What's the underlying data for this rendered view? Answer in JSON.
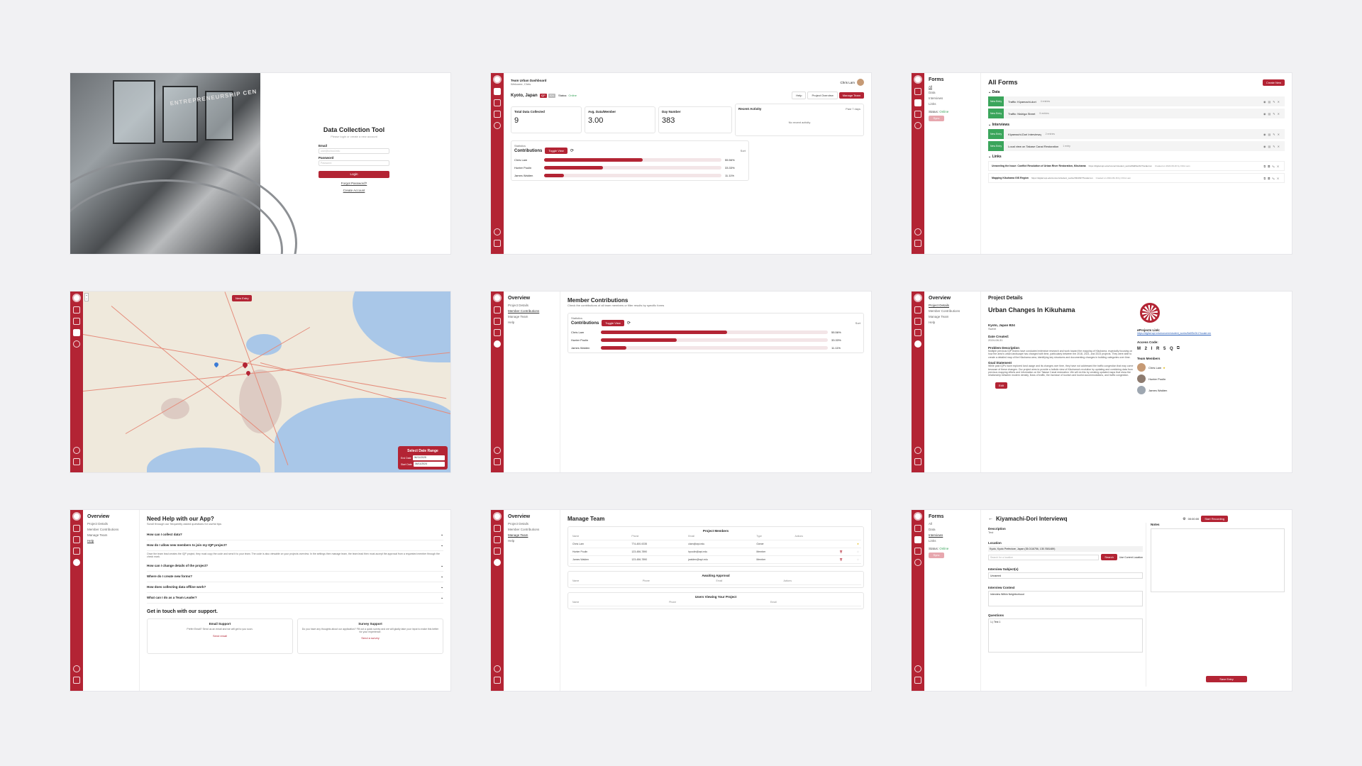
{
  "login": {
    "title": "Data Collection Tool",
    "subtitle": "Please login or create a new account",
    "email_label": "Email",
    "email_placeholder": "user@school.edu",
    "password_label": "Password",
    "password_placeholder": "Password",
    "login_button": "Login",
    "forgot_link": "Forgot Password?",
    "create_link": "Create Account",
    "photo_sign": "ENTREPRENEURSHIP CEN"
  },
  "dashboard": {
    "header": "Team Urban Dashboard",
    "header_sub": "Welcome, Chris",
    "user": "Chris Lam",
    "location": "Kyoto, Japan",
    "badge1": "IQP",
    "badge2": "E24",
    "status_label": "Status:",
    "status_value": "Online",
    "help": "Help",
    "project_overview": "Project Overview",
    "manage_team": "Manage Team",
    "stats": [
      {
        "label": "Total Data Collected",
        "value": "9"
      },
      {
        "label": "Avg. Data/Member",
        "value": "3.00"
      },
      {
        "label": "Day Number",
        "value": "383"
      }
    ],
    "recent_activity": "Recent Activity",
    "recent_range": "Past 7 days",
    "no_activity": "No recent activity",
    "contrib_kicker": "Statistics",
    "contrib_title": "Contributions",
    "toggle": "Toggle View",
    "sort": "Sort"
  },
  "contributions": [
    {
      "name": "Chris Lam",
      "pct": "55.56%",
      "value": 55.56
    },
    {
      "name": "Hunter Poulin",
      "pct": "33.33%",
      "value": 33.33
    },
    {
      "name": "James Walden",
      "pct": "11.11%",
      "value": 11.11
    }
  ],
  "forms": {
    "side_title": "Forms",
    "side_items": [
      "All",
      "Data",
      "Interviews",
      "Links"
    ],
    "status_label": "Status:",
    "status_value": "Online",
    "sync": "Sync",
    "title": "All Forms",
    "create": "Create New",
    "new_entry": "New Entry",
    "groups": [
      {
        "name": "Data",
        "items": [
          {
            "title": "Traffic: Kiyamachi-dori",
            "meta": "4 entries"
          },
          {
            "title": "Traffic: Nishiga Street",
            "meta": "5 entries"
          }
        ]
      },
      {
        "name": "Interviews",
        "items": [
          {
            "title": "Kiyamachi-Dori Interviewq",
            "meta": "2 entries"
          },
          {
            "title": "Local view on Takase Canal Restoration",
            "meta": "1 entry"
          }
        ]
      }
    ],
    "links_name": "Links",
    "links": [
      {
        "title": "Unraveling the Issue: Conflict Resolution of Urban River Restoration, Kikuhama",
        "url": "https://digital.wpi.edu/concern/student_works/8a9f3e2b1?locale=en",
        "meta": "Created on 2024-09-16 by Chris Lam"
      },
      {
        "title": "Mapping Kikuhama GIS Region",
        "url": "https://digital.wpi.edu/concern/student_works/z6b4637?locale=en",
        "meta": "Created on 2024-09-16 by Chris Lam"
      }
    ]
  },
  "map": {
    "new_entry": "New Entry",
    "date_title": "Select Date Range",
    "end_label": "End Date",
    "end_value": "06/11/2025",
    "start_label": "Start Date",
    "start_value": "06/11/2024"
  },
  "overview_nav": {
    "title": "Overview",
    "items": [
      "Project Details",
      "Member Contributions",
      "Manage Team",
      "Help"
    ]
  },
  "member_contrib": {
    "title": "Member Contributions",
    "subtitle": "Check the contributions of all team members or filter results by specific forms"
  },
  "project": {
    "header": "Project Details",
    "title": "Urban Changes In Kikuhama",
    "loc": "Kyoto, Japan  B24",
    "loc_sub": "Sweet",
    "date_label": "Date Created:",
    "date_value": "2024-08-31",
    "problem_label": "Problem Description",
    "problem_text": "Multiple previous IQP teams have conducted extensive research and work toward the mapping of Kikuhama, especially focusing on how the area's urban landscape has changed with time, particularly between the 2018, 2021, and 2023 projects. They were able to create a detailed map of the Kikuhama area, identifying key structures and documenting changes in building categories over time.",
    "goal_label": "Goal Statement",
    "goal_text": "While past IQPs have explored land usage and its changes over time, they have not addressed the traffic congestion that may come because of these changes. Our project aims to provide a holistic view of Kikuhama's evolution by updating and combining data from previous mapping efforts and information on the Takase Canal restoration. We will do this by creating updated maps that show the relationship between modern density, flows of traffic, the increase of tourism and tourist accommodations, and traffic congestion.",
    "edit": "Edit",
    "eprojects_label": "eProjects Link:",
    "eprojects_url": "https://digital.wpi.edu/concern/student_works/8a9f3e2b1?locale=en",
    "access_label": "Access Code:",
    "access_code": "M 2 I R 5 Q",
    "team_label": "Team Members",
    "members": [
      "Chris Lam",
      "Hunter Poulin",
      "James Walden"
    ]
  },
  "help": {
    "title": "Need Help with our App?",
    "subtitle": "Scroll through our frequently asked questions for useful tips",
    "faqs": [
      {
        "q": "How can I collect data?",
        "a": ""
      },
      {
        "q": "How do I allow new members to join my IQP project?",
        "a": "Once the team lead creates the IQP project, they must copy the code and send it to your team. The code is also viewable on your projects overview. In the settings then manage team, the team lead then must accept the approval from a requested member through the check mark."
      },
      {
        "q": "How can I change details of the project?",
        "a": ""
      },
      {
        "q": "Where do I create new forms?",
        "a": ""
      },
      {
        "q": "How does collecting data offline work?",
        "a": ""
      },
      {
        "q": "What can I do as a Team Leader?",
        "a": ""
      }
    ],
    "support_title": "Get in touch with our support.",
    "email_title": "Email Support",
    "email_text": "Prefer Email? Send us an email and we will get to you soon.",
    "email_link": "Send email",
    "survey_title": "Survey Support",
    "survey_text": "Do you have any thoughts about our application? Fill out a quick survey and we will gladly take your input to make this better for your experience.",
    "survey_link": "Send a survey"
  },
  "team": {
    "title": "Manage Team",
    "members_title": "Project Members",
    "cols": [
      "Name",
      "Phone",
      "Email",
      "Type",
      "Actions"
    ],
    "rows": [
      {
        "name": "Chris Lam",
        "phone": "774-400-9235",
        "email": "clam@wpi.edu",
        "type": "Owner"
      },
      {
        "name": "Hunter Poulin",
        "phone": "123-456-7890",
        "email": "hpoulin@wpi.edu",
        "type": "Member"
      },
      {
        "name": "James Walden",
        "phone": "123-456-7890",
        "email": "jwalden@wpi.edu",
        "type": "Member"
      }
    ],
    "awaiting_title": "Awaiting Approval",
    "awaiting_cols": [
      "Name",
      "Phone",
      "Email",
      "Actions"
    ],
    "viewing_title": "Users Viewing Your Project",
    "viewing_cols": [
      "Name",
      "Phone",
      "Email"
    ]
  },
  "interview": {
    "title": "Kiyamachi-Dori Interviewq",
    "timer": "00:00:00",
    "record": "Start Recording",
    "desc_label": "Description",
    "desc_value": "Test",
    "loc_label": "Location",
    "loc_value": "Kyoto, Kyoto Prefecture, Japan (35.0116756, 135.7681489)",
    "search_placeholder": "Search for a location",
    "search_btn": "Search",
    "current_loc": "Use Current Location",
    "subjects_label": "Interview Subject(s)",
    "subjects_value": "Unnamed",
    "context_label": "Interview Context",
    "context_value": "Interview Within Neighborhood",
    "questions_label": "Questions",
    "questions_value": "1.) Test 1",
    "notes_label": "Notes",
    "save": "Save Entry"
  },
  "colors": {
    "primary": "#b32434",
    "background": "#f1f1f3"
  }
}
